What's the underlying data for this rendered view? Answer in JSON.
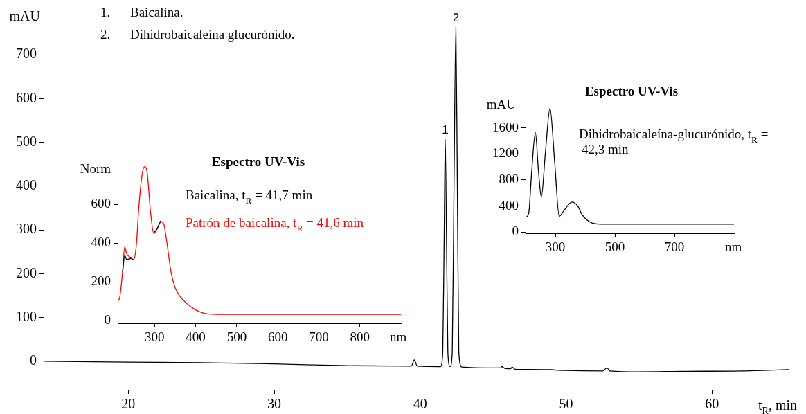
{
  "chart_data": [
    {
      "type": "line",
      "xlabel": "t$_{R}$, min",
      "ylabel": "mAU",
      "xlim": [
        14.2,
        65.3
      ],
      "ylim": [
        -65,
        800
      ],
      "xticks": [
        20,
        30,
        40,
        50,
        60
      ],
      "yticks": [
        0,
        100,
        200,
        300,
        400,
        500,
        600,
        700
      ],
      "annotations": [
        "1. Baicalina.",
        "2. Dihidrobaicaleína glucurónido.",
        {
          "text": "1",
          "x": 41.72,
          "y": 507
        },
        {
          "text": "2",
          "x": 42.45,
          "y": 763
        }
      ],
      "x": [
        14.2,
        20,
        25,
        30,
        35,
        39.4,
        39.6,
        39.8,
        41.4,
        41.55,
        41.65,
        41.72,
        41.8,
        41.9,
        42.05,
        42.2,
        42.32,
        42.45,
        42.55,
        42.65,
        42.85,
        45,
        45.5,
        45.6,
        45.8,
        46.2,
        46.3,
        46.5,
        49,
        49.3,
        50,
        52.5,
        52.8,
        53,
        55,
        58,
        62,
        65.3
      ],
      "series": [
        {
          "color": "#000000",
          "values": [
            0,
            -2,
            -3,
            -6,
            -10,
            -11,
            3,
            -11,
            -12,
            20,
            300,
            507,
            300,
            20,
            -12,
            20,
            400,
            763,
            400,
            20,
            -13,
            -15,
            -15,
            -12,
            -16,
            -17,
            -13,
            -18,
            -19,
            -20,
            -21,
            -22,
            -15,
            -22,
            -24,
            -23,
            -22,
            -19
          ]
        }
      ]
    },
    {
      "type": "line",
      "title": "Espectro UV-Vis",
      "xlabel": "nm",
      "ylabel": "Norm",
      "xlim": [
        210,
        900
      ],
      "ylim": [
        -14,
        825
      ],
      "xticks": [
        300,
        400,
        500,
        600,
        700,
        800
      ],
      "yticks": [
        0,
        200,
        400,
        600
      ],
      "x": [
        210,
        215,
        222,
        227,
        232,
        238,
        243,
        248,
        255,
        262,
        270,
        276,
        282,
        290,
        298,
        305,
        315,
        322,
        330,
        340,
        350,
        360,
        380,
        400,
        420,
        450,
        500,
        600,
        700,
        800,
        900
      ],
      "series": [
        {
          "name": "Baicalina, t$_{R}$ = 41,7 min",
          "color": "#000000",
          "values": [
            null,
            null,
            250,
            335,
            315,
            318,
            320,
            315,
            null,
            null,
            null,
            null,
            null,
            null,
            455,
            470,
            515,
            null,
            null,
            null,
            null,
            null,
            null,
            null,
            null,
            null,
            null,
            null,
            null,
            null,
            null
          ]
        },
        {
          "name": "Patrón de baicalina, t$_{R}$ = 41,6 min",
          "color": "#ff0000",
          "values": [
            100,
            120,
            255,
            380,
            345,
            330,
            325,
            312,
            380,
            600,
            760,
            795,
            760,
            560,
            448,
            468,
            510,
            500,
            400,
            250,
            170,
            130,
            85,
            55,
            38,
            32,
            32,
            32,
            32,
            32,
            32
          ]
        }
      ]
    },
    {
      "type": "line",
      "title": "Espectro UV-Vis",
      "xlabel": "nm",
      "ylabel": "mAU",
      "xlim": [
        200,
        900
      ],
      "ylim": [
        -20,
        1980
      ],
      "xticks": [
        300,
        500,
        700
      ],
      "yticks": [
        0,
        400,
        800,
        1200,
        1600
      ],
      "x": [
        203,
        211,
        220,
        233,
        243,
        253,
        267,
        282,
        298,
        313,
        329,
        356,
        375,
        391,
        422,
        453,
        600,
        750,
        900
      ],
      "series": [
        {
          "name": "Dihidrobaicaleína-glucurónido, t$_{R}$ = 42,3 min",
          "color": "#000000",
          "values": [
            230,
            300,
            890,
            1530,
            960,
            540,
            1240,
            1900,
            1060,
            240,
            330,
            460,
            400,
            260,
            140,
            120,
            120,
            120,
            120
          ]
        }
      ]
    }
  ]
}
